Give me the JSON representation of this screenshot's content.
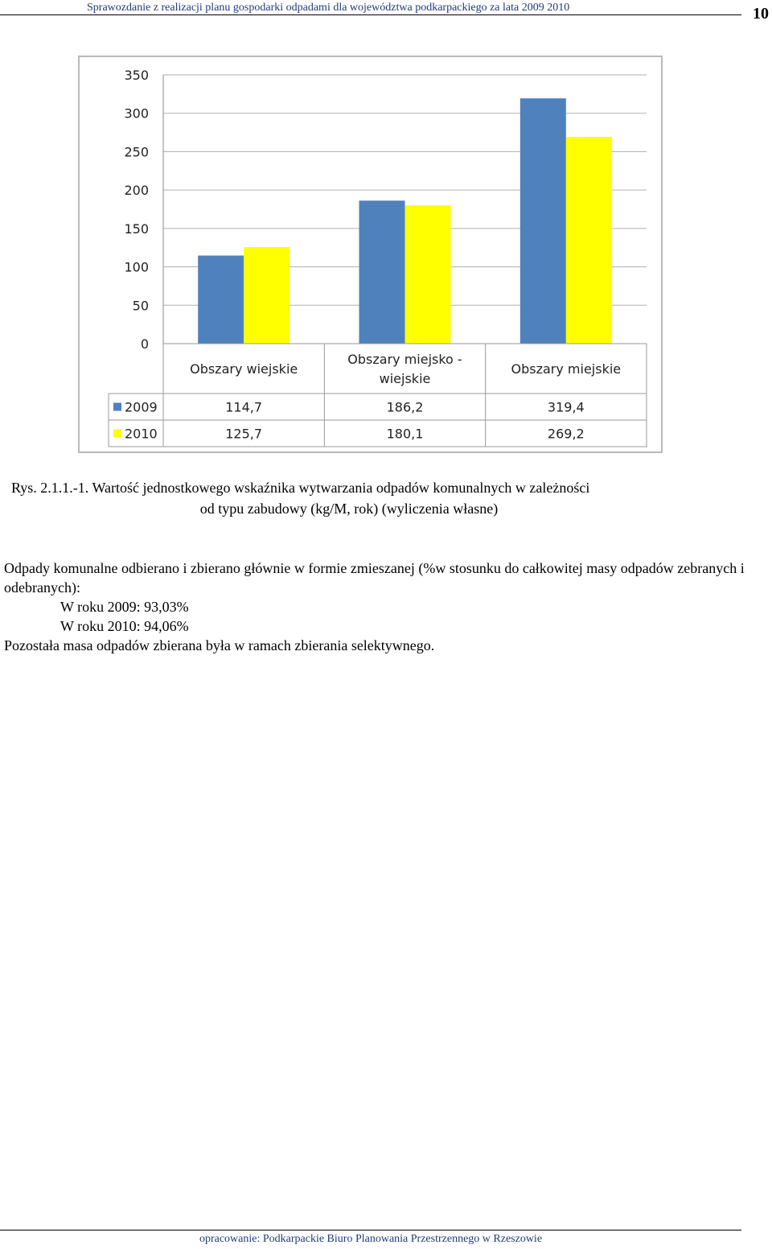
{
  "header": {
    "title": "Sprawozdanie z realizacji planu gospodarki odpadami dla województwa podkarpackiego za lata 2009 2010",
    "page_number": "10"
  },
  "chart_data": {
    "type": "bar",
    "categories": [
      "Obszary wiejskie",
      "Obszary miejsko - wiejskie",
      "Obszary miejskie"
    ],
    "category_lines": [
      [
        "Obszary wiejskie"
      ],
      [
        "Obszary miejsko -",
        "wiejskie"
      ],
      [
        "Obszary miejskie"
      ]
    ],
    "series": [
      {
        "name": "2009",
        "values": [
          114.7,
          186.2,
          319.4
        ],
        "labels": [
          "114,7",
          "186,2",
          "319,4"
        ],
        "color": "#4f81bd"
      },
      {
        "name": "2010",
        "values": [
          125.7,
          180.1,
          269.2
        ],
        "labels": [
          "125,7",
          "180,1",
          "269,2"
        ],
        "color": "#ffff00"
      }
    ],
    "ylim": [
      0,
      350
    ],
    "yticks": [
      0,
      50,
      100,
      150,
      200,
      250,
      300,
      350
    ],
    "grid": true,
    "legend": "data-table"
  },
  "caption": {
    "line1": "Rys. 2.1.1.-1. Wartość jednostkowego wskaźnika wytwarzania odpadów komunalnych w zależności",
    "line2": "od typu zabudowy (kg/M, rok) (wyliczenia własne)"
  },
  "body": {
    "paragraph": "Odpady komunalne odbierano i zbierano głównie w formie zmieszanej (%w stosunku do całkowitej masy odpadów zebranych i odebranych):",
    "year_2009": "W roku 2009: 93,03%",
    "year_2010": "W roku 2010: 94,06%",
    "closing": "Pozostała masa odpadów zbierana była w ramach zbierania selektywnego."
  },
  "footer": {
    "text": "opracowanie: Podkarpackie Biuro Planowania Przestrzennego w Rzeszowie"
  }
}
